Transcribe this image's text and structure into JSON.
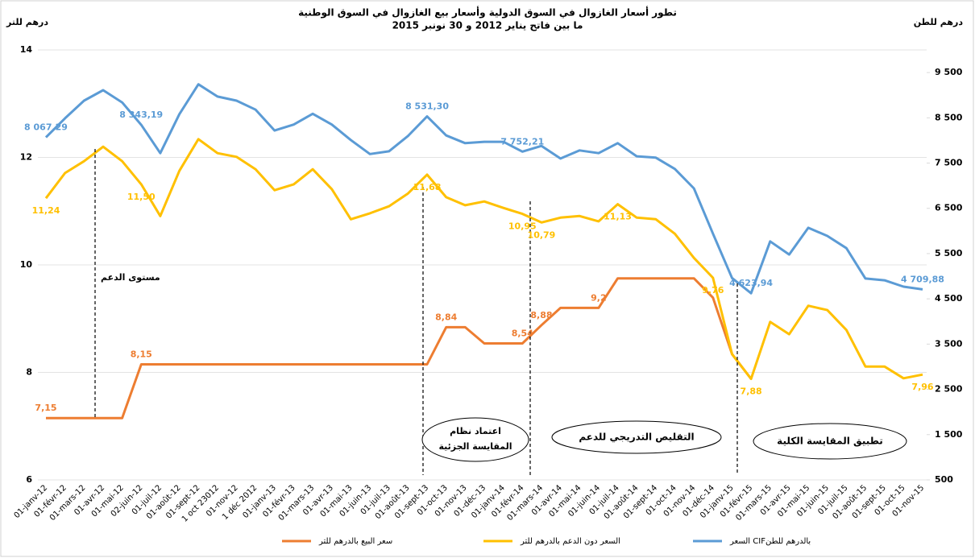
{
  "chart_data": {
    "type": "line",
    "title": [
      "تطور أسعار الغازوال في السوق الدولية وأسعار بيع الغازوال في السوق الوطنية",
      "ما بين فاتح يناير 2012 و 30 نونبر 2015"
    ],
    "y_label": "درهم للتر",
    "y2_label": "درهم للطن",
    "categories": [
      "01-janv-12",
      "01-févr-12",
      "01-mars-12",
      "01-avr-12",
      "01-mai-12",
      "02-juin-12",
      "01-juil-12",
      "01-août-12",
      "01-sept-12",
      "1 oct 23012",
      "01-nov-12",
      "1 déc 2012",
      "01-janv-13",
      "01-févr-13",
      "01-mars-13",
      "01-avr-13",
      "01-mai-13",
      "01-juin-13",
      "01-juil-13",
      "01-août-13",
      "01-sept-13",
      "01-oct-13",
      "01-nov-13",
      "01-déc-13",
      "01-janv-14",
      "01-févr-14",
      "01-mars-14",
      "01-avr-14",
      "01-mai-14",
      "01-juin-14",
      "01-juil-14",
      "01-août-14",
      "01-sept-14",
      "01-oct-14",
      "01-nov-14",
      "01-déc-14",
      "01-janv-15",
      "01-févr-15",
      "01-mars-15",
      "01-avr-15",
      "01-mai-15",
      "01-juin-15",
      "01-juil-15",
      "01-août-15",
      "01-sept-15",
      "01-oct-15",
      "01-nov-15"
    ],
    "series": [
      {
        "name": "سعر البيع بالدرهم للتر",
        "color": "#ed7d31",
        "axis": "y",
        "values": [
          7.15,
          7.15,
          7.15,
          7.15,
          7.15,
          8.15,
          8.15,
          8.15,
          8.15,
          8.15,
          8.15,
          8.15,
          8.15,
          8.15,
          8.15,
          8.15,
          8.15,
          8.15,
          8.15,
          8.15,
          8.15,
          8.84,
          8.84,
          8.54,
          8.54,
          8.54,
          8.88,
          9.2,
          9.2,
          9.2,
          9.75,
          9.75,
          9.75,
          9.75,
          9.75,
          9.39,
          8.34,
          7.88,
          null,
          null,
          null,
          null,
          null,
          null,
          null,
          null,
          null
        ],
        "value_labels": [
          "7,15",
          null,
          null,
          null,
          null,
          "8,15",
          null,
          null,
          null,
          null,
          null,
          null,
          null,
          null,
          null,
          null,
          null,
          null,
          null,
          null,
          null,
          "8,84",
          null,
          null,
          null,
          "8,54",
          "8,88",
          null,
          null,
          "9,2",
          null,
          null,
          null,
          null,
          null,
          null,
          null,
          null,
          null,
          null,
          null,
          null,
          null,
          null,
          null,
          null,
          null
        ]
      },
      {
        "name": "السعر دون الدعم بالدرهم للتر",
        "color": "#ffc000",
        "axis": "y",
        "values": [
          11.24,
          11.71,
          11.93,
          12.2,
          11.93,
          11.5,
          10.91,
          11.75,
          12.34,
          12.08,
          12.01,
          11.78,
          11.39,
          11.5,
          11.78,
          11.41,
          10.85,
          10.96,
          11.09,
          11.33,
          11.68,
          11.26,
          11.11,
          11.18,
          11.06,
          10.95,
          10.79,
          10.88,
          10.91,
          10.81,
          11.13,
          10.88,
          10.85,
          10.58,
          10.13,
          9.76,
          8.34,
          7.88,
          8.94,
          8.71,
          9.24,
          9.16,
          8.79,
          8.11,
          8.11,
          7.89,
          7.96
        ],
        "value_labels": [
          "11,24",
          null,
          null,
          null,
          null,
          "11,50",
          null,
          null,
          null,
          null,
          null,
          null,
          null,
          null,
          null,
          null,
          null,
          null,
          null,
          null,
          "11,68",
          null,
          null,
          null,
          null,
          "10,95",
          "10,79",
          null,
          null,
          null,
          "11,13",
          null,
          null,
          null,
          null,
          "9,76",
          null,
          "7,88",
          null,
          null,
          null,
          null,
          null,
          null,
          null,
          null,
          "7,96"
        ]
      },
      {
        "name": "السعر CIFبالدرهم للطن",
        "color": "#5b9bd5",
        "axis": "y2",
        "values": [
          8067.29,
          8490,
          8880,
          9110,
          8840,
          8343.19,
          7720,
          8580,
          9240,
          8970,
          8880,
          8680,
          8220,
          8350,
          8590,
          8350,
          8010,
          7700,
          7760,
          8100,
          8531.3,
          8110,
          7940,
          7970,
          7970,
          7752.21,
          7880,
          7600,
          7780,
          7720,
          7940,
          7650,
          7620,
          7370,
          6940,
          5940,
          4960,
          4623.94,
          5770,
          5480,
          6070,
          5890,
          5620,
          4950,
          4910,
          4770,
          4709.88
        ],
        "value_labels": [
          "8 067,29",
          null,
          null,
          null,
          null,
          "8 343,19",
          null,
          null,
          null,
          null,
          null,
          null,
          null,
          null,
          null,
          null,
          null,
          null,
          null,
          null,
          "8 531,30",
          null,
          null,
          null,
          null,
          "7 752,21",
          null,
          null,
          null,
          null,
          null,
          null,
          null,
          null,
          null,
          null,
          null,
          "4 623,94",
          null,
          null,
          null,
          null,
          null,
          null,
          null,
          null,
          "4 709,88"
        ]
      }
    ],
    "ylim": [
      6,
      14
    ],
    "yticks": [
      6,
      8,
      10,
      12,
      14
    ],
    "y2lim": [
      500,
      10000
    ],
    "y2ticks": [
      {
        "value": 500,
        "label": "500"
      },
      {
        "value": 1500,
        "label": "1 500"
      },
      {
        "value": 2500,
        "label": "2 500"
      },
      {
        "value": 3500,
        "label": "3 500"
      },
      {
        "value": 4500,
        "label": "4 500"
      },
      {
        "value": 5500,
        "label": "5 500"
      },
      {
        "value": 6500,
        "label": "6 500"
      },
      {
        "value": 7500,
        "label": "7 500"
      },
      {
        "value": 8500,
        "label": "8 500"
      },
      {
        "value": 9500,
        "label": "9 500"
      }
    ],
    "grid": true,
    "legend": "bottom",
    "annotations": [
      {
        "text": "مستوى الدعم"
      },
      {
        "lines": [
          "اعتماد نظام",
          "المقايسة الجزئية"
        ]
      },
      {
        "text": "التقليص التدريجي للدعم"
      },
      {
        "text": "تطبيق المقايسة الكلية"
      }
    ]
  }
}
